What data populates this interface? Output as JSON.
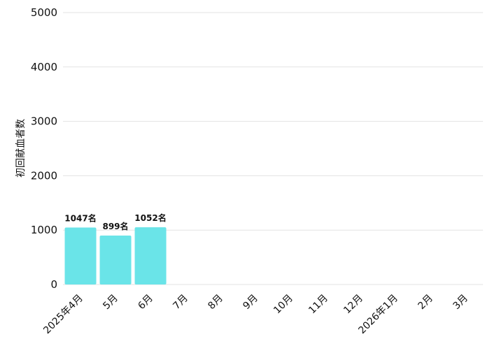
{
  "chart_data": {
    "type": "bar",
    "title": "",
    "xlabel": "",
    "ylabel": "初回献血者数",
    "categories": [
      "2025年4月",
      "5月",
      "6月",
      "7月",
      "8月",
      "9月",
      "10月",
      "11月",
      "12月",
      "2026年1月",
      "2月",
      "3月"
    ],
    "values": [
      1047,
      899,
      1052,
      null,
      null,
      null,
      null,
      null,
      null,
      null,
      null,
      null
    ],
    "data_labels": [
      "1047名",
      "899名",
      "1052名",
      "",
      "",
      "",
      "",
      "",
      "",
      "",
      "",
      ""
    ],
    "yticks": [
      "0",
      "1000",
      "2000",
      "3000",
      "4000",
      "5000"
    ],
    "ylim": [
      0,
      5000
    ],
    "grid": true,
    "legend": "none",
    "bar_color": "#6ae4e8"
  }
}
